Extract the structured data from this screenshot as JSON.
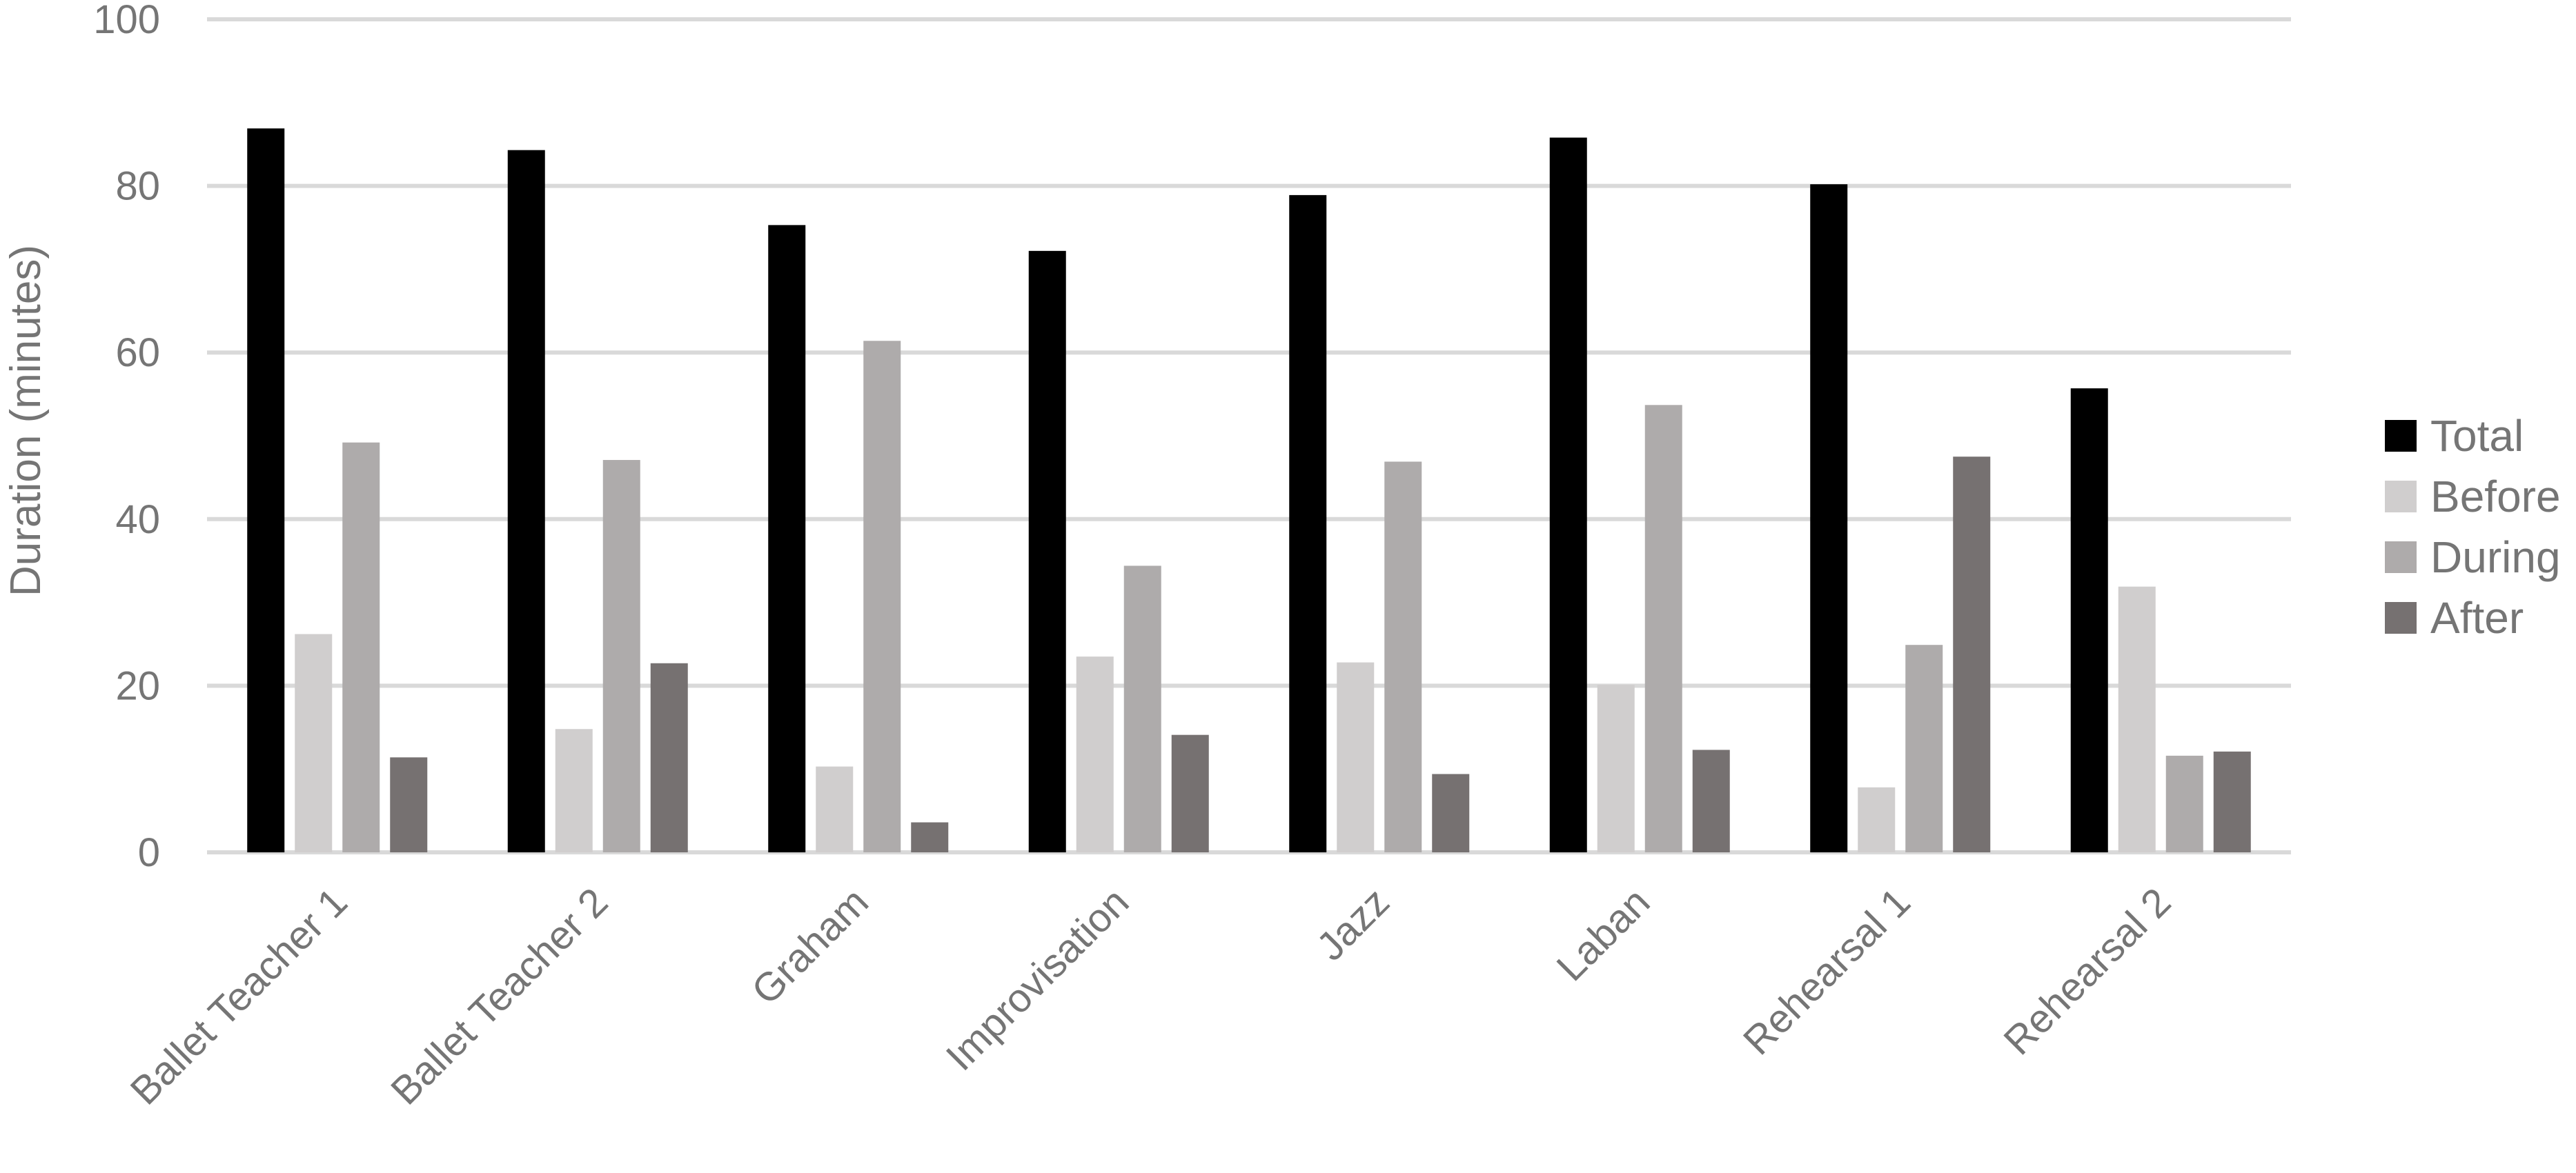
{
  "chart_data": {
    "type": "bar",
    "ylabel": "Duration (minutes)",
    "xlabel": "",
    "ylim": [
      0,
      100
    ],
    "yticks": [
      0,
      20,
      40,
      60,
      80,
      100
    ],
    "grid": true,
    "legend_position": "right",
    "categories": [
      "Ballet Teacher 1",
      "Ballet Teacher 2",
      "Graham",
      "Improvisation",
      "Jazz",
      "Laban",
      "Rehearsal 1",
      "Rehearsal 2"
    ],
    "series": [
      {
        "name": "Total",
        "color": "#000000",
        "values": [
          86.9,
          84.3,
          75.3,
          72.2,
          78.9,
          85.8,
          80.2,
          55.7
        ]
      },
      {
        "name": "Before",
        "color": "#d0cece",
        "values": [
          26.2,
          14.8,
          10.3,
          23.5,
          22.8,
          20.1,
          7.8,
          31.9
        ]
      },
      {
        "name": "During",
        "color": "#aeabab",
        "values": [
          49.2,
          47.1,
          61.4,
          34.4,
          46.9,
          53.7,
          24.9,
          11.6
        ]
      },
      {
        "name": "After",
        "color": "#767171",
        "values": [
          11.4,
          22.7,
          3.6,
          14.1,
          9.4,
          12.3,
          47.5,
          12.1
        ]
      }
    ]
  }
}
